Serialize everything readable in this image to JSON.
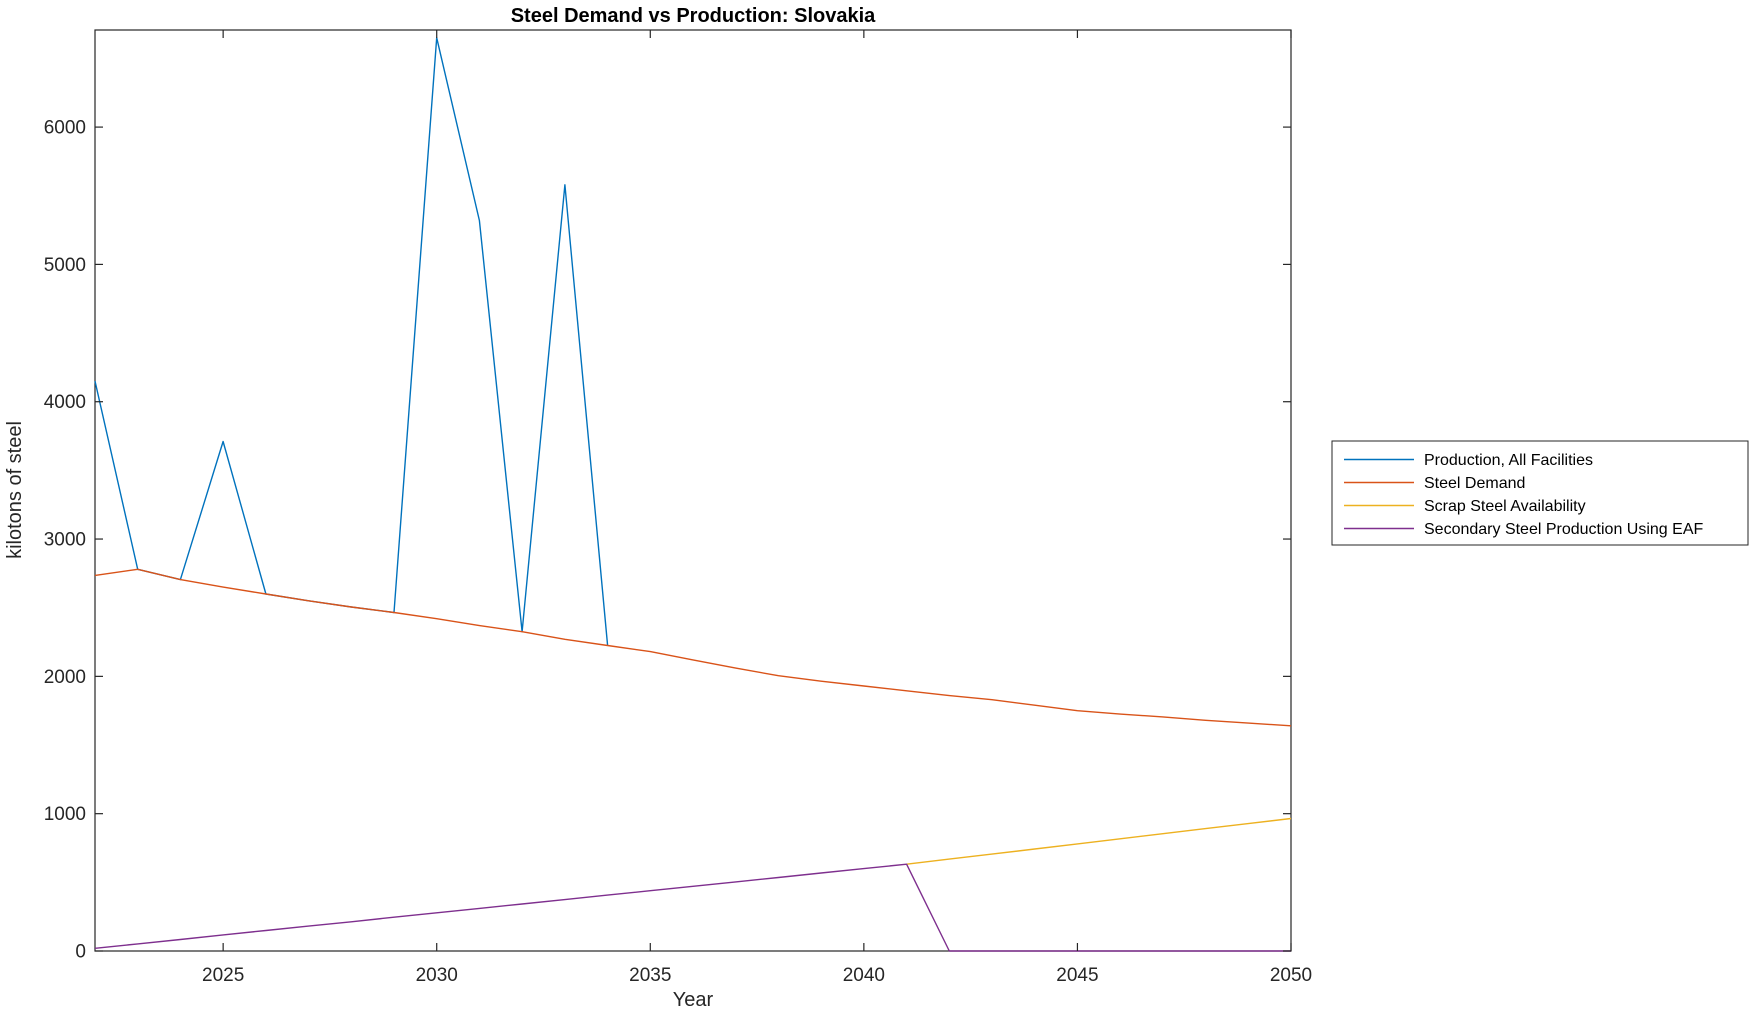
{
  "figure": {
    "background": "#ffffff",
    "axis_color": "#262626"
  },
  "chart_data": {
    "type": "line",
    "title": "Steel Demand vs Production: Slovakia",
    "xlabel": "Year",
    "ylabel": "kilotons of steel",
    "xlim": [
      2022,
      2050
    ],
    "ylim": [
      0,
      6707
    ],
    "xticks": [
      2025,
      2030,
      2035,
      2040,
      2045,
      2050
    ],
    "yticks": [
      0,
      1000,
      2000,
      3000,
      4000,
      5000,
      6000
    ],
    "grid": false,
    "box": true,
    "legend": {
      "position": "outside-right",
      "border": true
    },
    "series": [
      {
        "name": "Production, All Facilities",
        "color": "#0072BD",
        "x": [
          2022,
          2023,
          2024,
          2025,
          2026,
          2027,
          2028,
          2029,
          2030,
          2031,
          2032,
          2033,
          2034
        ],
        "y": [
          4150,
          2780,
          2705,
          3710,
          2600,
          2550,
          2505,
          2465,
          6650,
          5320,
          2325,
          5580,
          2225
        ]
      },
      {
        "name": "Steel Demand",
        "color": "#D95319",
        "x": [
          2022,
          2023,
          2024,
          2025,
          2026,
          2027,
          2028,
          2029,
          2030,
          2031,
          2032,
          2033,
          2034,
          2035,
          2036,
          2037,
          2038,
          2039,
          2040,
          2041,
          2042,
          2043,
          2044,
          2045,
          2046,
          2047,
          2048,
          2049,
          2050
        ],
        "y": [
          2735,
          2780,
          2705,
          2650,
          2600,
          2550,
          2505,
          2465,
          2420,
          2370,
          2325,
          2270,
          2225,
          2180,
          2120,
          2060,
          2005,
          1965,
          1930,
          1895,
          1860,
          1830,
          1790,
          1750,
          1725,
          1705,
          1680,
          1660,
          1640
        ]
      },
      {
        "name": "Scrap Steel Availability",
        "color": "#EDB120",
        "x": [
          2041,
          2042,
          2043,
          2044,
          2045,
          2046,
          2047,
          2048,
          2049,
          2050
        ],
        "y": [
          632,
          669,
          706,
          743,
          780,
          817,
          854,
          891,
          928,
          965
        ]
      },
      {
        "name": "Secondary Steel Production Using EAF",
        "color": "#7E2F8E",
        "x": [
          2022,
          2023,
          2024,
          2025,
          2026,
          2027,
          2028,
          2029,
          2030,
          2031,
          2032,
          2033,
          2034,
          2035,
          2036,
          2037,
          2038,
          2039,
          2040,
          2041,
          2042,
          2043,
          2044,
          2045,
          2046,
          2047,
          2048,
          2049,
          2050
        ],
        "y": [
          20,
          52,
          84,
          117,
          149,
          181,
          213,
          246,
          278,
          310,
          342,
          374,
          407,
          439,
          471,
          503,
          535,
          568,
          600,
          632,
          0,
          0,
          0,
          0,
          0,
          0,
          0,
          0,
          0
        ]
      }
    ]
  }
}
